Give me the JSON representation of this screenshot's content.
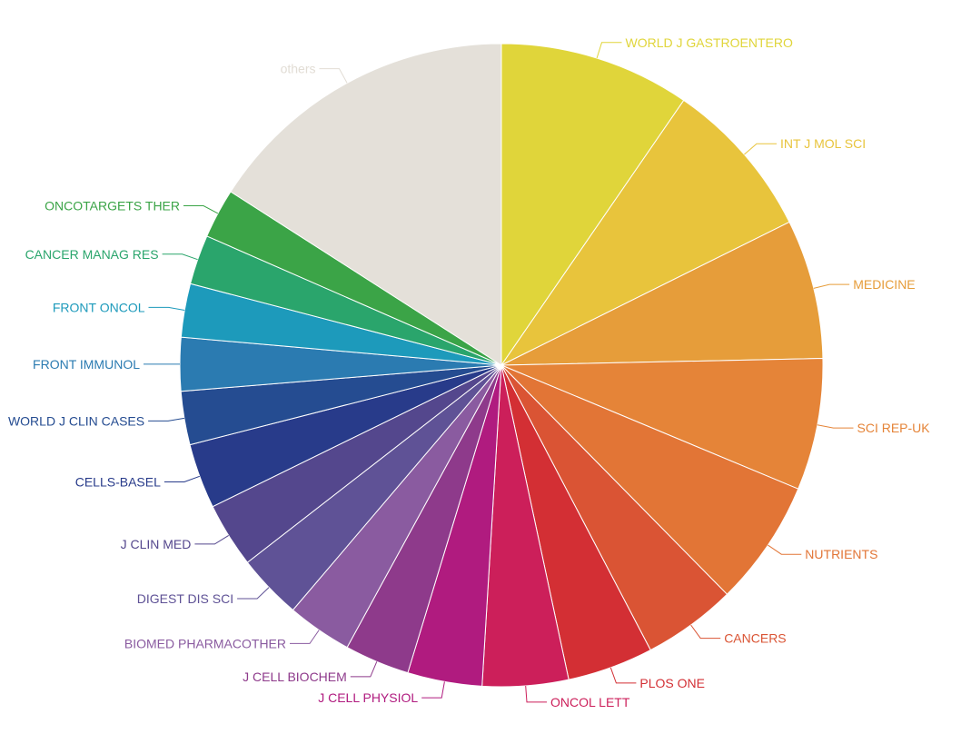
{
  "chart_data": {
    "type": "pie",
    "title": "",
    "start_angle_deg": 0,
    "direction": "clockwise",
    "slices": [
      {
        "name": "WORLD J GASTROENTERO",
        "value": 10.0,
        "color": "#e0d53a"
      },
      {
        "name": "INT J MOL SCI",
        "value": 8.4,
        "color": "#e8c43c"
      },
      {
        "name": "MEDICINE",
        "value": 7.3,
        "color": "#e69d3a"
      },
      {
        "name": "SCI REP-UK",
        "value": 6.9,
        "color": "#e58438"
      },
      {
        "name": "NUTRIENTS",
        "value": 6.6,
        "color": "#e27536"
      },
      {
        "name": "CANCERS",
        "value": 4.9,
        "color": "#da5434"
      },
      {
        "name": "PLOS ONE",
        "value": 4.5,
        "color": "#d32f34"
      },
      {
        "name": "ONCOL LETT",
        "value": 4.5,
        "color": "#cc1f5a"
      },
      {
        "name": "J CELL PHYSIOL",
        "value": 3.9,
        "color": "#b01b7f"
      },
      {
        "name": "J CELL BIOCHEM",
        "value": 3.4,
        "color": "#8e3a8b"
      },
      {
        "name": "BIOMED PHARMACOTHER",
        "value": 3.4,
        "color": "#8a5ba0"
      },
      {
        "name": "DIGEST DIS SCI",
        "value": 3.4,
        "color": "#5f5296"
      },
      {
        "name": "J CLIN MED",
        "value": 3.4,
        "color": "#54478d"
      },
      {
        "name": "CELLS-BASEL",
        "value": 3.4,
        "color": "#283b8a"
      },
      {
        "name": "WORLD J CLIN CASES",
        "value": 2.8,
        "color": "#254c91"
      },
      {
        "name": "FRONT IMMUNOL",
        "value": 2.8,
        "color": "#2b7bb1"
      },
      {
        "name": "FRONT ONCOL",
        "value": 2.8,
        "color": "#1d9abb"
      },
      {
        "name": "CANCER MANAG RES",
        "value": 2.6,
        "color": "#2aa56c"
      },
      {
        "name": "ONCOTARGETS THER",
        "value": 2.6,
        "color": "#3ba447"
      },
      {
        "name": "others",
        "value": 16.6,
        "color": "#e4e0d9"
      }
    ]
  }
}
